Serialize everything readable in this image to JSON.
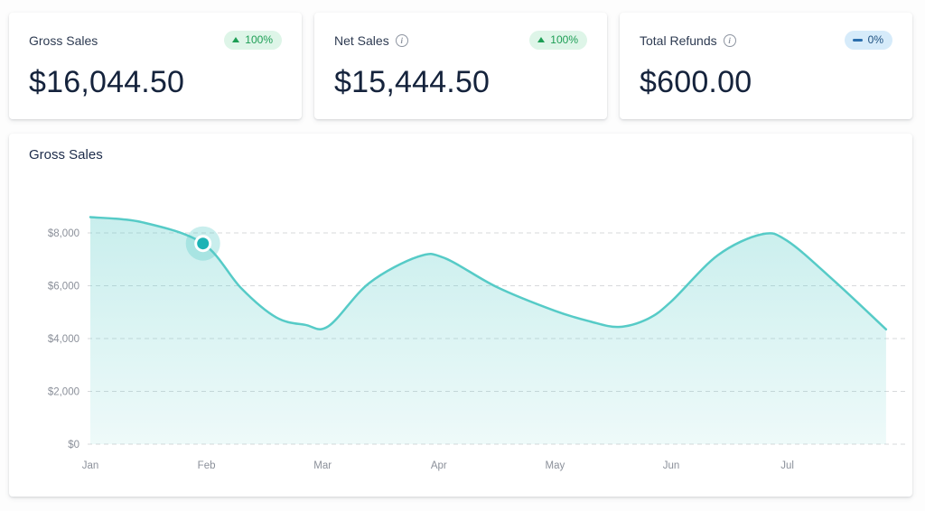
{
  "stat_cards": [
    {
      "label": "Gross Sales",
      "has_info": false,
      "value": "$16,044.50",
      "badge": {
        "text": "100%",
        "direction": "up"
      }
    },
    {
      "label": "Net Sales",
      "has_info": true,
      "value": "$15,444.50",
      "badge": {
        "text": "100%",
        "direction": "up"
      }
    },
    {
      "label": "Total Refunds",
      "has_info": true,
      "value": "$600.00",
      "badge": {
        "text": "0%",
        "direction": "flat"
      }
    }
  ],
  "icons": {
    "info_glyph": "i"
  },
  "colors": {
    "badge_up_bg": "#def5e8",
    "badge_up_text": "#1d9e55",
    "badge_flat_bg": "#d6ebfa",
    "badge_flat_text": "#1d5080",
    "line": "#56cbc7",
    "dot": "#1db3b5",
    "value_text": "#15233c",
    "grid": "#d7d9db"
  },
  "chart": {
    "title": "Gross Sales"
  },
  "chart_data": {
    "type": "area",
    "title": "Gross Sales",
    "xlabel": "",
    "ylabel": "",
    "x_tick_labels": [
      "Jan",
      "Feb",
      "Mar",
      "Apr",
      "May",
      "Jun",
      "Jul"
    ],
    "y_tick_labels": [
      "$8,000",
      "$6,000",
      "$4,000",
      "$2,000",
      "$0"
    ],
    "y_tick_values": [
      8000,
      6000,
      4000,
      2000,
      0
    ],
    "y_range": [
      0,
      9400
    ],
    "grid": "horizontal-dashed",
    "legend": "none",
    "line_color": "#56cbc7",
    "series": [
      {
        "name": "Gross Sales",
        "x_months": [
          0,
          0.45,
          0.97,
          1.3,
          1.6,
          1.85,
          2.05,
          2.4,
          2.82,
          3.05,
          3.5,
          4.0,
          4.3,
          4.55,
          4.8,
          5.0,
          5.4,
          5.78,
          6.0,
          6.4,
          6.85
        ],
        "values": [
          8600,
          8400,
          7600,
          5900,
          4800,
          4520,
          4470,
          6100,
          7100,
          7050,
          5950,
          5050,
          4650,
          4440,
          4750,
          5400,
          7150,
          7950,
          7700,
          6200,
          4350
        ]
      }
    ],
    "highlight_point": {
      "x_month": 0.97,
      "value": 7600,
      "near_label": "Feb"
    }
  }
}
